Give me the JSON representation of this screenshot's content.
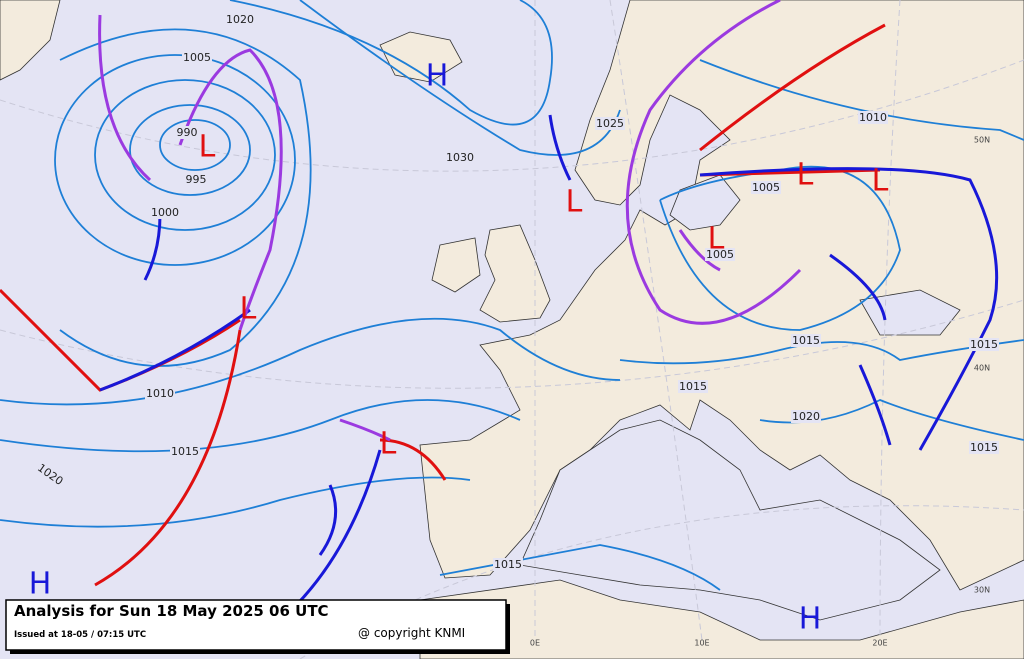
{
  "legend": {
    "title": "Analysis for Sun 18 May 2025 06 UTC",
    "issued": "Issued at 18-05 / 07:15 UTC",
    "copyright": "@ copyright KNMI"
  },
  "pressure_centers": [
    "H",
    "L",
    "L",
    "L",
    "L",
    "L",
    "H",
    "H",
    "L",
    "L"
  ],
  "isobar_labels": [
    "1020",
    "1005",
    "990",
    "995",
    "1000",
    "1030",
    "1025",
    "1010",
    "1005",
    "1005",
    "1010",
    "1015",
    "1020",
    "1015",
    "1015",
    "1020",
    "1015",
    "1015",
    "1015"
  ],
  "grid_labels": [
    "50N",
    "40N",
    "30N",
    "0E",
    "10E",
    "20E"
  ]
}
